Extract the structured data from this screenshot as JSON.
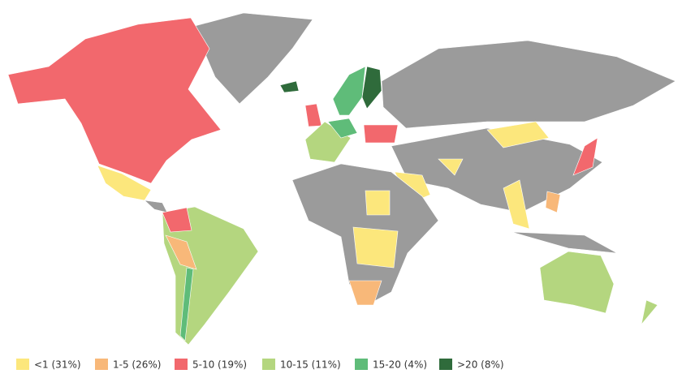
{
  "legend": {
    "items": [
      {
        "label": "<1 (31%)",
        "color": "#fce77c"
      },
      {
        "label": "1-5 (26%)",
        "color": "#f8b879"
      },
      {
        "label": "5-10 (19%)",
        "color": "#f2686d"
      },
      {
        "label": "10-15 (11%)",
        "color": "#b4d67f"
      },
      {
        "label": "15-20 (4%)",
        "color": "#5fbc79"
      },
      {
        "label": ">20 (8%)",
        "color": "#2f6b3b"
      }
    ]
  }
}
